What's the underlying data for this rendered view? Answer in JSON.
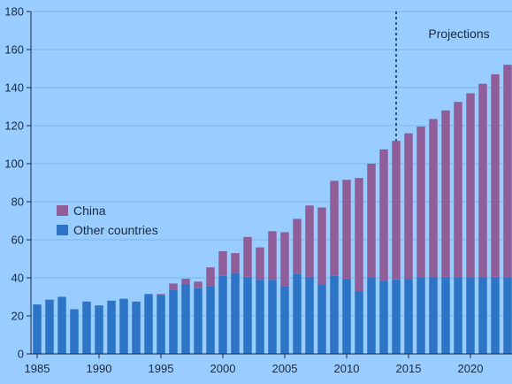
{
  "chart_data": {
    "type": "bar",
    "stacked": true,
    "title": "",
    "xlabel": "",
    "ylabel": "",
    "ylim": [
      0,
      180
    ],
    "yticks": [
      0,
      20,
      40,
      60,
      80,
      100,
      120,
      140,
      160,
      180
    ],
    "xticks": [
      1985,
      1990,
      1995,
      2000,
      2005,
      2010,
      2015,
      2020
    ],
    "x": [
      1985,
      1986,
      1987,
      1988,
      1989,
      1990,
      1991,
      1992,
      1993,
      1994,
      1995,
      1996,
      1997,
      1998,
      1999,
      2000,
      2001,
      2002,
      2003,
      2004,
      2005,
      2006,
      2007,
      2008,
      2009,
      2010,
      2011,
      2012,
      2013,
      2014,
      2015,
      2016,
      2017,
      2018,
      2019,
      2020,
      2021,
      2022,
      2023
    ],
    "series": [
      {
        "name": "Other countries",
        "color": "#2e74c6",
        "values": [
          26,
          28.5,
          30,
          23.5,
          27.5,
          25.5,
          28,
          29,
          27.5,
          31.5,
          31,
          33.5,
          36.5,
          34.5,
          35.5,
          41,
          42.5,
          40,
          39,
          39,
          35.5,
          42,
          40.5,
          36.5,
          41,
          39.5,
          33,
          40,
          38.5,
          39,
          39.5,
          40,
          40,
          40,
          40,
          40,
          40,
          40,
          40
        ]
      },
      {
        "name": "China",
        "color": "#8f5e99",
        "values": [
          0,
          0,
          0,
          0,
          0,
          0,
          0,
          0,
          0,
          0,
          0.5,
          3.5,
          3,
          3.5,
          10,
          13,
          10.5,
          21.5,
          17,
          25.5,
          28.5,
          29,
          37.5,
          40.5,
          50,
          52,
          59.5,
          60,
          69,
          73,
          76.5,
          79.5,
          83.5,
          88,
          92.5,
          97,
          102,
          107,
          112
        ]
      }
    ],
    "grid": "horizontal",
    "legend": {
      "placement": "left-middle",
      "entries": [
        "China",
        "Other countries"
      ]
    },
    "annotations": [
      {
        "text": "Projections",
        "x": 2014,
        "style": "dashed vertical line"
      }
    ]
  }
}
